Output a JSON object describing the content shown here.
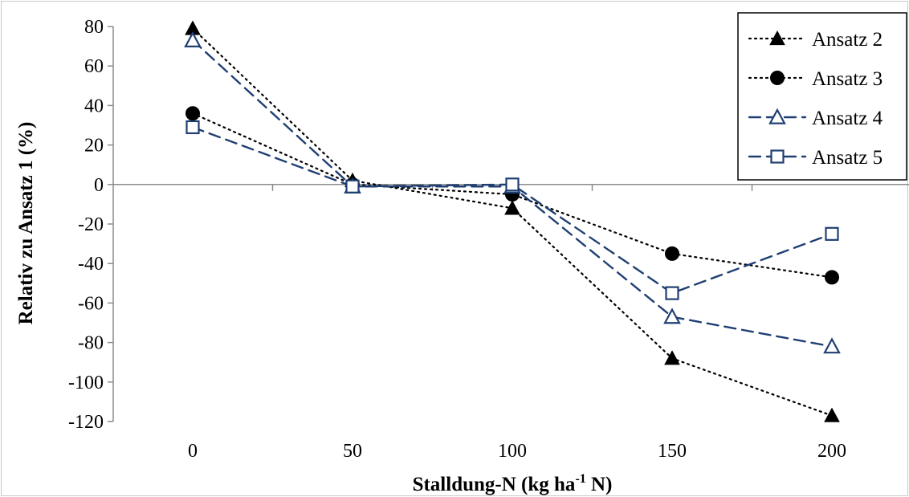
{
  "chart_data": {
    "type": "line",
    "title": "",
    "xlabel_main": "Stalldung-N (kg ha",
    "xlabel_sup": "-1",
    "xlabel_tail": " N)",
    "ylabel": "Relativ zu Ansatz 1 (%)",
    "x": [
      0,
      50,
      100,
      150,
      200
    ],
    "x_tick_labels": [
      "0",
      "50",
      "100",
      "150",
      "200"
    ],
    "ylim": [
      -120,
      80
    ],
    "y_ticks": [
      80,
      60,
      40,
      20,
      0,
      -20,
      -40,
      -60,
      -80,
      -100,
      -120
    ],
    "y_tick_labels": [
      "80",
      "60",
      "40",
      "20",
      "0",
      "-20",
      "-40",
      "-60",
      "-80",
      "-100",
      "-120"
    ],
    "grid": false,
    "legend_position": "top-right",
    "series": [
      {
        "name": "Ansatz 2",
        "values": [
          79,
          2,
          -12,
          -88,
          -117
        ],
        "marker": "triangle-filled",
        "line": "dotted",
        "color": "#000000"
      },
      {
        "name": "Ansatz 3",
        "values": [
          36,
          0,
          -5,
          -35,
          -47
        ],
        "marker": "circle-filled",
        "line": "dotted",
        "color": "#000000"
      },
      {
        "name": "Ansatz 4",
        "values": [
          73,
          -1,
          -1,
          -67,
          -82
        ],
        "marker": "triangle-open",
        "line": "dashed",
        "color": "#1f3f73"
      },
      {
        "name": "Ansatz 5",
        "values": [
          29,
          -1,
          0,
          -55,
          -25
        ],
        "marker": "square-open",
        "line": "dashed",
        "color": "#1f3f73"
      }
    ]
  }
}
